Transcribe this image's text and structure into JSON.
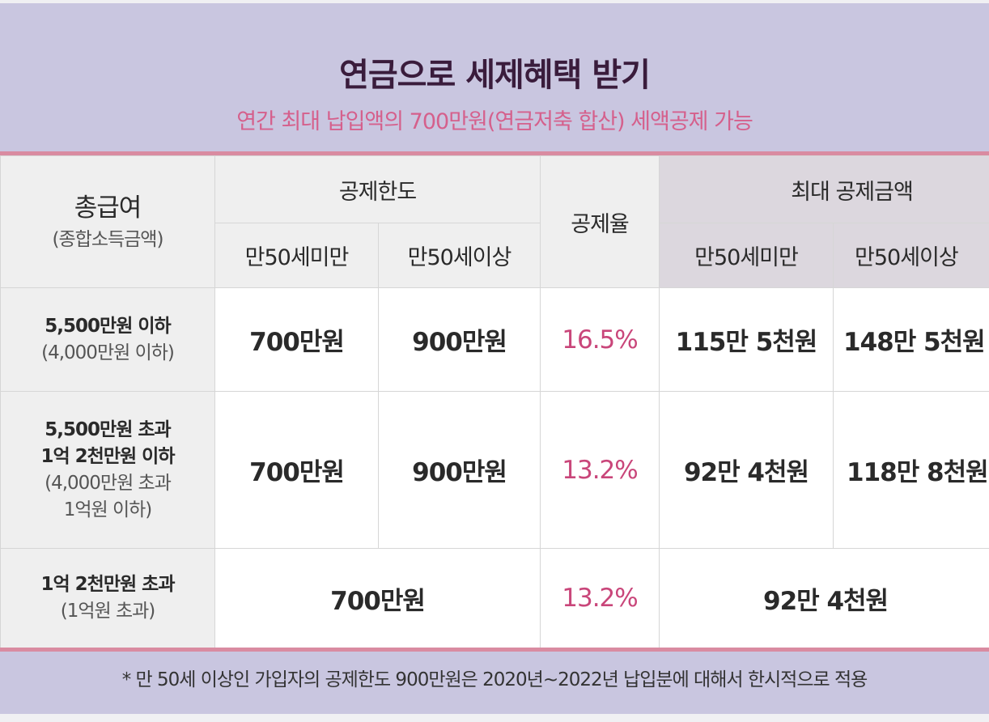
{
  "header": {
    "title": "연금으로 세제혜택 받기",
    "subtitle": "연간 최대 납입액의 700만원(연금저축 합산) 세액공제 가능"
  },
  "table": {
    "col_income": "총급여",
    "col_income_sub": "(종합소득금액)",
    "col_limit": "공제한도",
    "col_rate": "공제율",
    "col_max": "최대 공제금액",
    "under50": "만50세미만",
    "over50": "만50세이상",
    "rows": [
      {
        "label": "5,500만원 이하",
        "sub": "(4,000만원 이하)",
        "limit_under": "700만원",
        "limit_over": "900만원",
        "rate": "16.5%",
        "max_under": "115만 5천원",
        "max_over": "148만 5천원"
      },
      {
        "label": "5,500만원 초과",
        "label2": "1억 2천만원 이하",
        "sub": "(4,000만원 초과",
        "sub2": "1억원 이하)",
        "limit_under": "700만원",
        "limit_over": "900만원",
        "rate": "13.2%",
        "max_under": "92만 4천원",
        "max_over": "118만 8천원"
      },
      {
        "label": "1억 2천만원 초과",
        "sub": "(1억원 초과)",
        "limit": "700만원",
        "rate": "13.2%",
        "max": "92만 4천원"
      }
    ]
  },
  "footnote": "* 만 50세 이상인 가입자의 공제한도 900만원은 2020년~2022년 납입분에 대해서 한시적으로 적용",
  "colors": {
    "banner": "#c9c6e0",
    "accent_line": "#d98ba1",
    "rate": "#c9467a",
    "title": "#3a1c3c",
    "subtitle": "#d5608c"
  }
}
